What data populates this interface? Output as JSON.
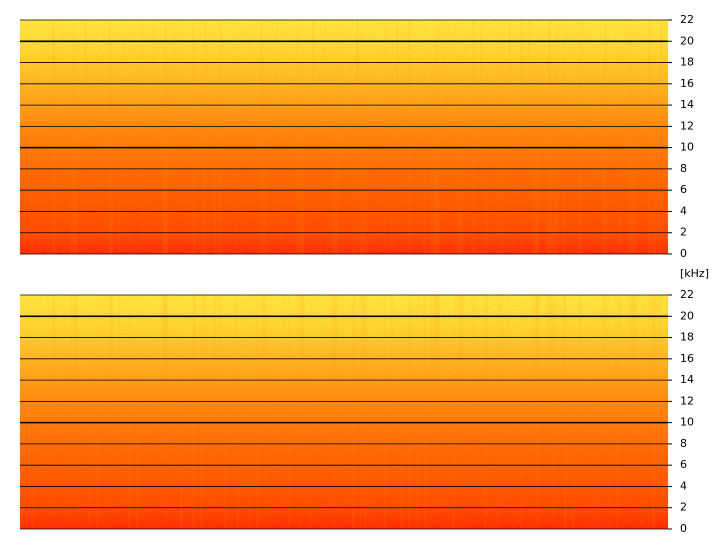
{
  "chart_data": [
    {
      "type": "spectrogram",
      "ylim": [
        0,
        22
      ],
      "yticks": [
        0,
        2,
        4,
        6,
        8,
        10,
        12,
        14,
        16,
        18,
        20,
        22
      ],
      "grid": true,
      "bold_grid": [
        10,
        20
      ]
    },
    {
      "type": "spectrogram",
      "ylabel": "[kHz]",
      "ylim": [
        0,
        22
      ],
      "yticks": [
        0,
        2,
        4,
        6,
        8,
        10,
        12,
        14,
        16,
        18,
        20,
        22
      ],
      "grid": true,
      "bold_grid": [
        10,
        20
      ]
    }
  ]
}
